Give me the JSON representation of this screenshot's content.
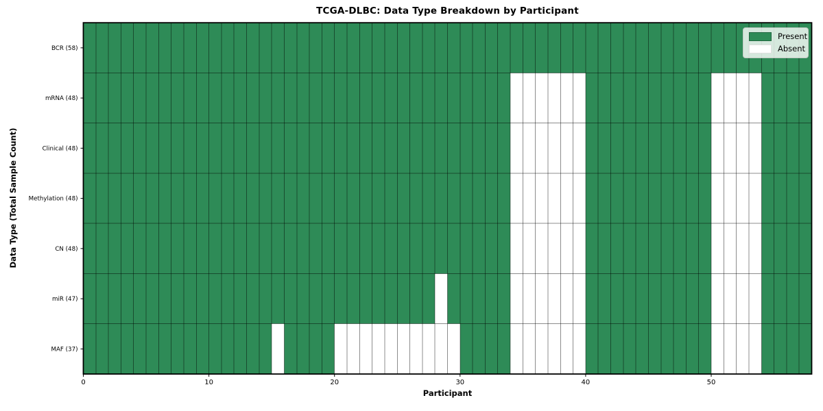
{
  "figure": {
    "title": "TCGA-DLBC: Data Type Breakdown by Participant",
    "x_axis_label": "Participant",
    "y_axis_label": "Data Type (Total Sample Count)"
  },
  "legend": {
    "items": [
      {
        "label": "Present",
        "swatch_color": "#2e8b57",
        "swatch_border": "rgba(0,0,0,0.25)"
      },
      {
        "label": "Absent",
        "swatch_color": "#ffffff",
        "swatch_border": "rgba(0,0,0,0.12)"
      }
    ],
    "position": "upper right"
  },
  "chart_data": {
    "type": "heatmap",
    "title": "TCGA-DLBC: Data Type Breakdown by Participant",
    "xlabel": "Participant",
    "ylabel": "Data Type (Total Sample Count)",
    "x_ticks": [
      0,
      10,
      20,
      30,
      40,
      50
    ],
    "x_range": [
      0,
      58
    ],
    "n_participants": 58,
    "cell_states": [
      "Present",
      "Absent"
    ],
    "rows": [
      {
        "label": "BCR (58)",
        "data_type": "BCR",
        "total_sample_count": 58,
        "absent_participants": []
      },
      {
        "label": "mRNA (48)",
        "data_type": "mRNA",
        "total_sample_count": 48,
        "absent_participants": [
          34,
          35,
          36,
          37,
          38,
          39,
          50,
          51,
          52,
          53
        ]
      },
      {
        "label": "Clinical (48)",
        "data_type": "Clinical",
        "total_sample_count": 48,
        "absent_participants": [
          34,
          35,
          36,
          37,
          38,
          39,
          50,
          51,
          52,
          53
        ]
      },
      {
        "label": "Methylation (48)",
        "data_type": "Methylation",
        "total_sample_count": 48,
        "absent_participants": [
          34,
          35,
          36,
          37,
          38,
          39,
          50,
          51,
          52,
          53
        ]
      },
      {
        "label": "CN (48)",
        "data_type": "CN",
        "total_sample_count": 48,
        "absent_participants": [
          34,
          35,
          36,
          37,
          38,
          39,
          50,
          51,
          52,
          53
        ]
      },
      {
        "label": "miR (47)",
        "data_type": "miR",
        "total_sample_count": 47,
        "absent_participants": [
          28,
          34,
          35,
          36,
          37,
          38,
          39,
          50,
          51,
          52,
          53
        ]
      },
      {
        "label": "MAF (37)",
        "data_type": "MAF",
        "total_sample_count": 37,
        "absent_participants": [
          15,
          20,
          21,
          22,
          23,
          24,
          25,
          26,
          27,
          28,
          29,
          34,
          35,
          36,
          37,
          38,
          39,
          50,
          51,
          52,
          53
        ]
      }
    ],
    "colors": {
      "present": "#2e8b57",
      "absent": "#ffffff",
      "grid_line": "rgba(0, 0, 0, 0.45)",
      "spine": "#000000",
      "text": "#000000"
    },
    "grid": true,
    "legend_position": "upper right"
  }
}
